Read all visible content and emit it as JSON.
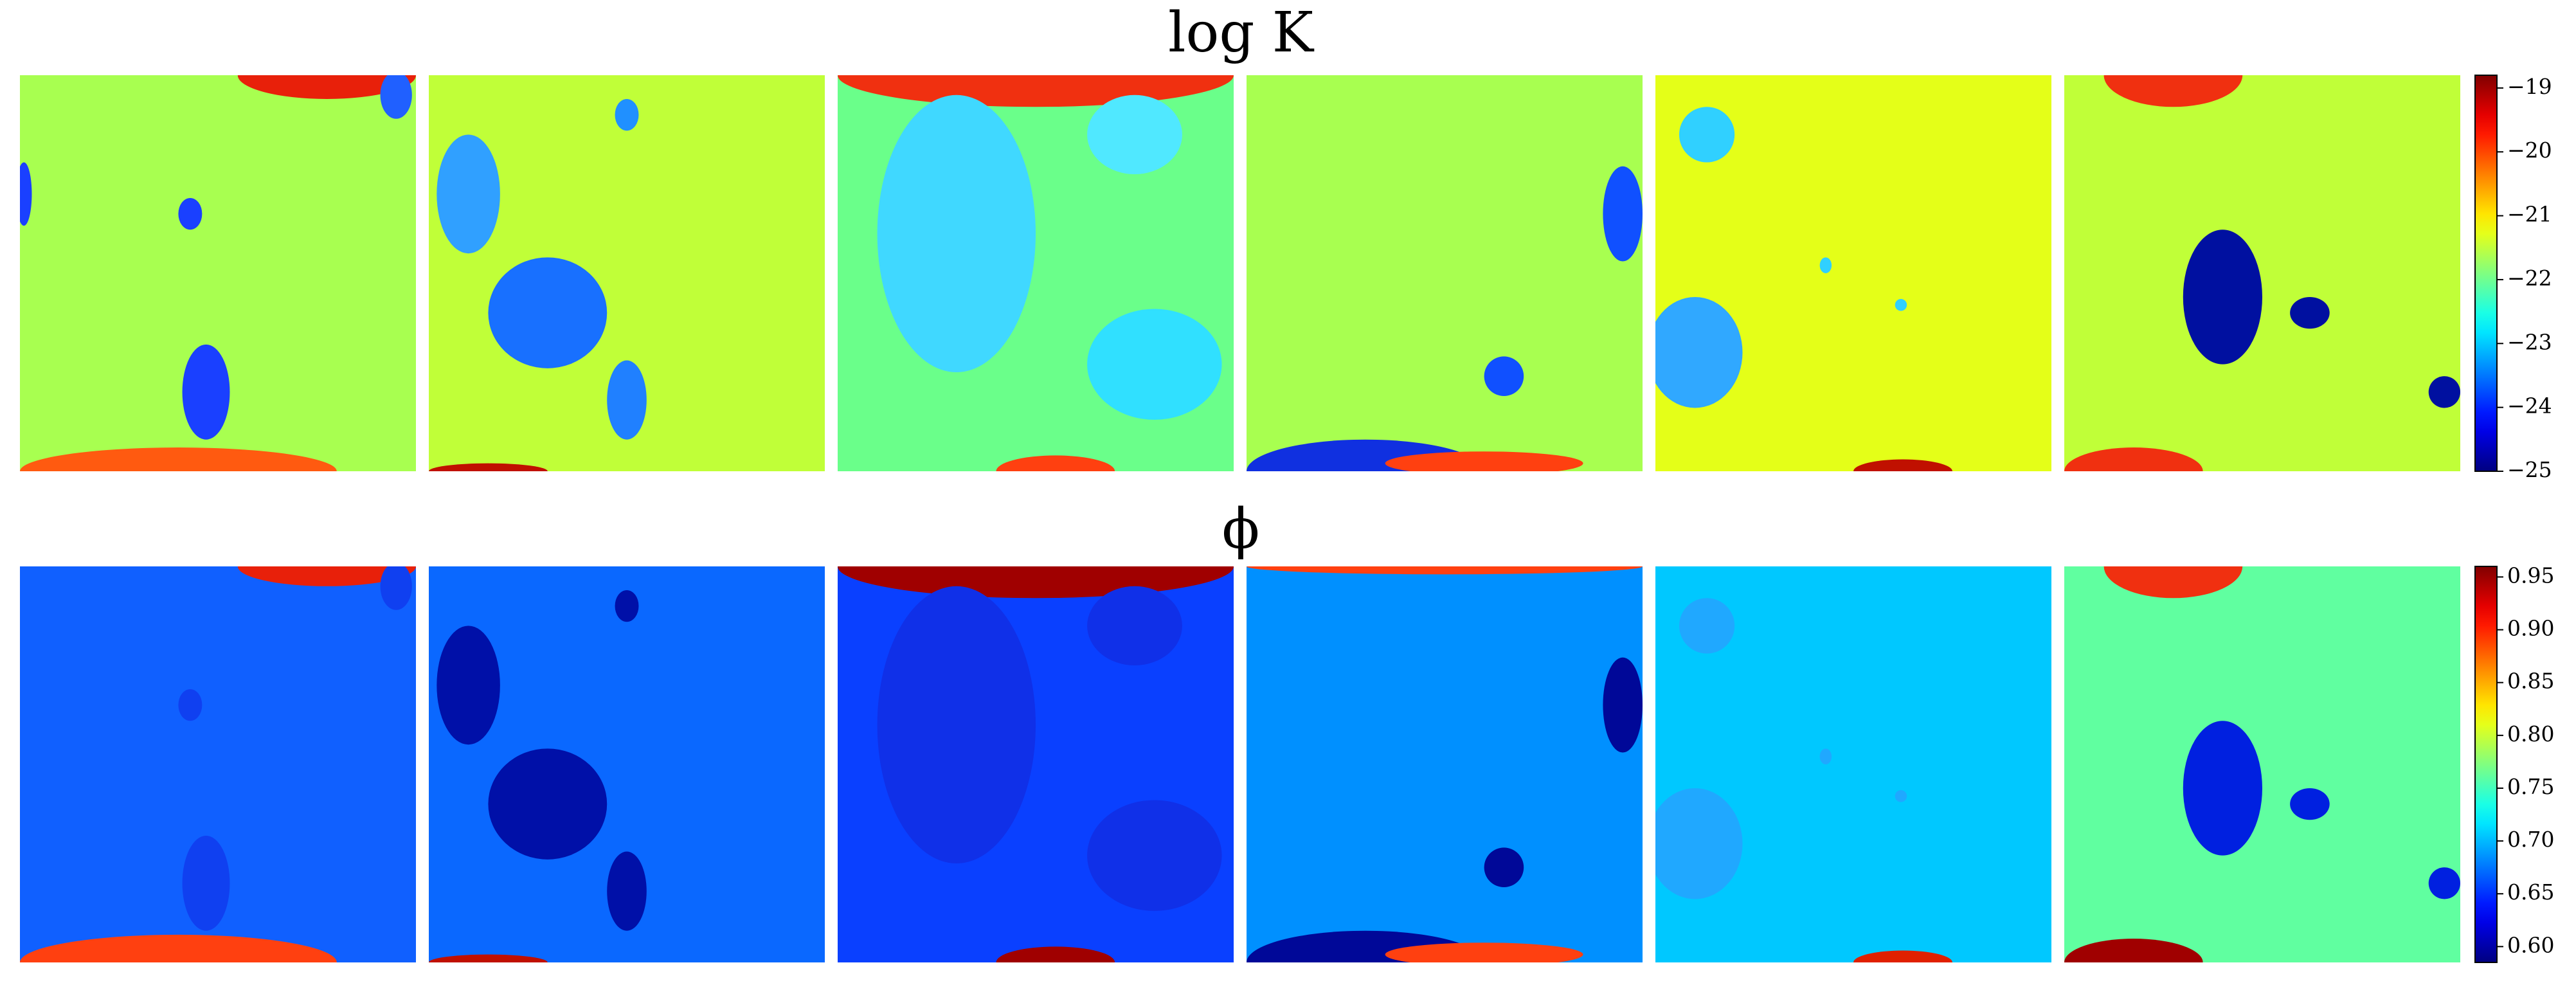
{
  "chart_data": [
    {
      "type": "heatmap",
      "title": "log K",
      "colormap": "jet",
      "ylim": [
        -25,
        -18.8
      ],
      "yticks": [
        {
          "value": -25,
          "label": "−25"
        },
        {
          "value": -24,
          "label": "−24"
        },
        {
          "value": -23,
          "label": "−23"
        },
        {
          "value": -22,
          "label": "−22"
        },
        {
          "value": -21,
          "label": "−21"
        },
        {
          "value": -20,
          "label": "−20"
        },
        {
          "value": -19,
          "label": "−19"
        }
      ]
    },
    {
      "type": "heatmap",
      "title": "ϕ",
      "colormap": "jet",
      "ylim": [
        0.585,
        0.96
      ],
      "yticks": [
        {
          "value": 0.6,
          "label": "0.60"
        },
        0.65,
        {
          "value": 0.7,
          "label": "0.70"
        },
        0.75,
        {
          "value": 0.8,
          "label": "0.80"
        },
        0.85,
        {
          "value": 0.9,
          "label": "0.90"
        },
        0.95
      ]
    }
  ]
}
